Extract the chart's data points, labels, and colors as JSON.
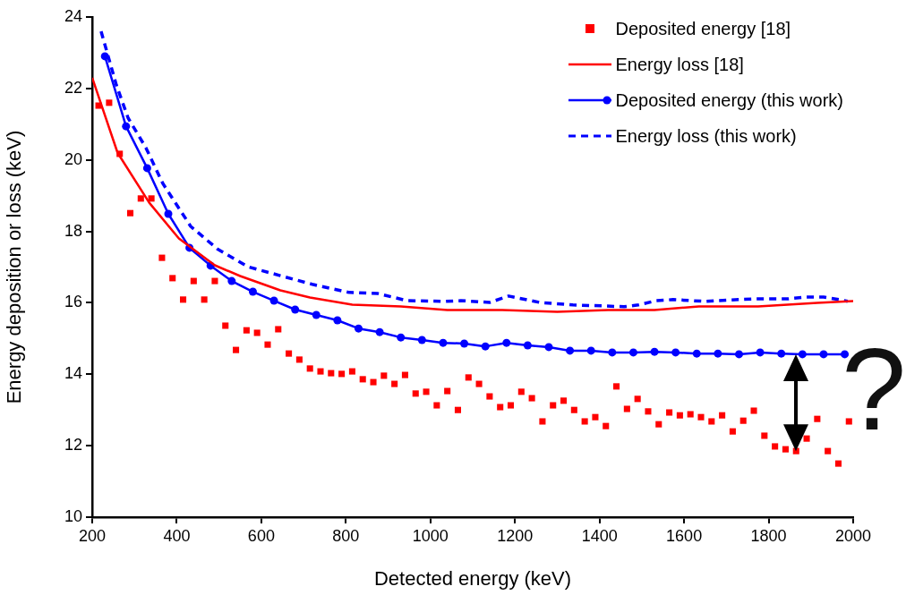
{
  "chart_data": {
    "type": "line",
    "xlabel": "Detected energy (keV)",
    "ylabel": "Energy deposition or loss (keV)",
    "xlim": [
      200,
      2000
    ],
    "ylim": [
      10,
      24
    ],
    "xticks": [
      200,
      400,
      600,
      800,
      1000,
      1200,
      1400,
      1600,
      1800,
      2000
    ],
    "yticks": [
      10,
      12,
      14,
      16,
      18,
      20,
      22,
      24
    ],
    "grid": false,
    "legend": "top right",
    "annotations": [
      "?"
    ],
    "series": [
      {
        "name": "Deposited energy [18]",
        "type": "scatter",
        "marker": "square",
        "color": "#ff0000",
        "x": [
          215,
          240,
          265,
          290,
          315,
          340,
          365,
          390,
          415,
          440,
          465,
          490,
          515,
          540,
          565,
          590,
          615,
          640,
          665,
          690,
          715,
          740,
          765,
          790,
          815,
          840,
          865,
          890,
          915,
          940,
          965,
          990,
          1015,
          1040,
          1065,
          1090,
          1115,
          1140,
          1165,
          1190,
          1215,
          1240,
          1265,
          1290,
          1315,
          1340,
          1365,
          1390,
          1415,
          1440,
          1465,
          1490,
          1515,
          1540,
          1565,
          1590,
          1615,
          1640,
          1665,
          1690,
          1715,
          1740,
          1765,
          1790,
          1815,
          1840,
          1865,
          1890,
          1915,
          1940,
          1965,
          1990
        ],
        "values": [
          21.52,
          21.6,
          20.17,
          18.51,
          18.92,
          18.92,
          17.26,
          16.69,
          16.09,
          16.61,
          16.09,
          16.61,
          15.36,
          14.68,
          15.23,
          15.16,
          14.83,
          15.26,
          14.58,
          14.41,
          14.16,
          14.08,
          14.03,
          14.01,
          14.08,
          13.86,
          13.78,
          13.96,
          13.73,
          13.98,
          13.46,
          13.51,
          13.13,
          13.53,
          13.0,
          13.91,
          13.73,
          13.38,
          13.08,
          13.13,
          13.51,
          13.33,
          12.68,
          13.13,
          13.26,
          13.0,
          12.68,
          12.8,
          12.55,
          13.66,
          13.03,
          13.31,
          12.96,
          12.6,
          12.93,
          12.85,
          12.88,
          12.8,
          12.68,
          12.85,
          12.4,
          12.7,
          12.98,
          12.28,
          11.98,
          11.9,
          11.85,
          12.2,
          12.75,
          11.85,
          11.5,
          12.68
        ]
      },
      {
        "name": "Energy loss [18]",
        "type": "line",
        "marker": "none",
        "line_style": "solid",
        "color": "#ff0000",
        "x": [
          200,
          260,
          335,
          405,
          490,
          550,
          645,
          715,
          815,
          930,
          1040,
          1170,
          1300,
          1420,
          1530,
          1635,
          1775,
          1915,
          2000
        ],
        "values": [
          22.3,
          20.2,
          18.8,
          17.8,
          17.05,
          16.75,
          16.35,
          16.15,
          15.95,
          15.9,
          15.8,
          15.8,
          15.75,
          15.8,
          15.8,
          15.9,
          15.9,
          16.0,
          16.05
        ]
      },
      {
        "name": "Deposited energy (this work)",
        "type": "line",
        "marker": "circle",
        "line_style": "solid",
        "color": "#0000ff",
        "x": [
          230,
          280,
          330,
          380,
          430,
          480,
          530,
          580,
          630,
          680,
          730,
          780,
          830,
          880,
          930,
          980,
          1030,
          1080,
          1130,
          1180,
          1230,
          1280,
          1330,
          1380,
          1430,
          1480,
          1530,
          1580,
          1630,
          1680,
          1730,
          1780,
          1830,
          1880,
          1930,
          1980
        ],
        "values": [
          22.9,
          20.94,
          19.77,
          18.49,
          17.54,
          17.04,
          16.61,
          16.31,
          16.06,
          15.81,
          15.66,
          15.51,
          15.28,
          15.18,
          15.03,
          14.96,
          14.88,
          14.86,
          14.78,
          14.88,
          14.81,
          14.76,
          14.66,
          14.66,
          14.61,
          14.61,
          14.63,
          14.61,
          14.58,
          14.58,
          14.56,
          14.61,
          14.58,
          14.56,
          14.56,
          14.56
        ]
      },
      {
        "name": "Energy loss (this work)",
        "type": "line",
        "marker": "none",
        "line_style": "dashed",
        "color": "#0000ff",
        "x": [
          221,
          257,
          285,
          327,
          367,
          433,
          496,
          568,
          645,
          723,
          808,
          875,
          945,
          1034,
          1072,
          1140,
          1185,
          1259,
          1337,
          1415,
          1458,
          1492,
          1534,
          1574,
          1650,
          1729,
          1771,
          1845,
          1888,
          1930,
          1968,
          1987
        ],
        "values": [
          23.6,
          22.1,
          21.17,
          20.34,
          19.34,
          18.14,
          17.51,
          17.01,
          16.76,
          16.51,
          16.29,
          16.26,
          16.06,
          16.04,
          16.06,
          16.01,
          16.19,
          16.01,
          15.94,
          15.91,
          15.89,
          15.94,
          16.06,
          16.09,
          16.04,
          16.09,
          16.11,
          16.11,
          16.16,
          16.16,
          16.09,
          16.04
        ]
      }
    ]
  }
}
